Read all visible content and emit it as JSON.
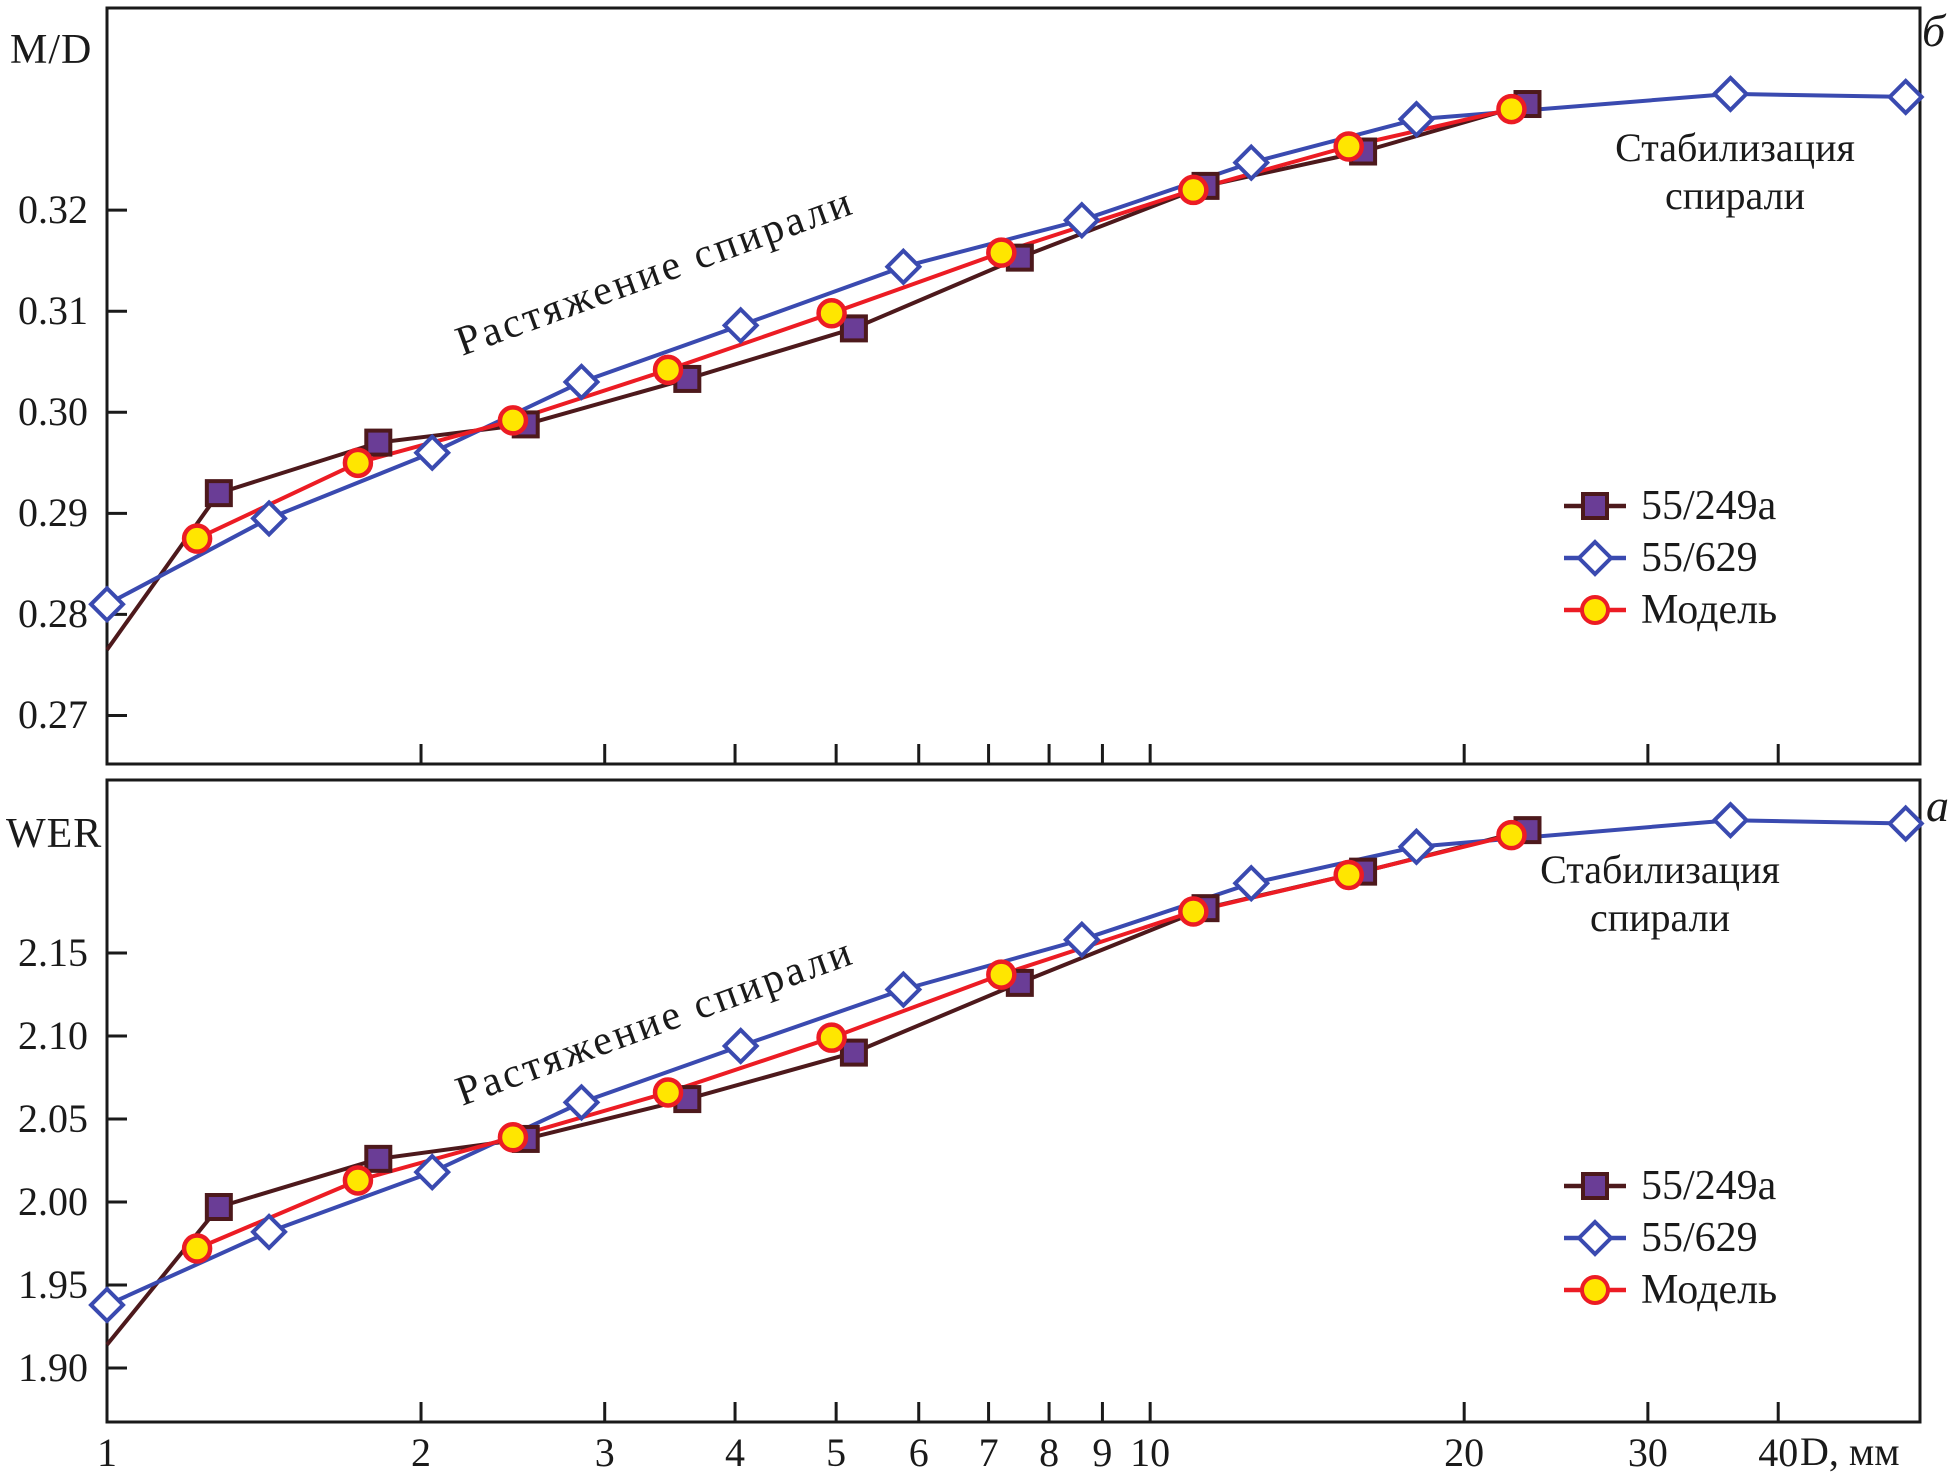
{
  "figure": {
    "background": "#ffffff",
    "frame_color": "#1a1a1a",
    "text_color": "#1a1a1a",
    "x_axis": {
      "title": "D, мм",
      "scale": "log",
      "range": [
        1,
        54.7
      ],
      "tick_values": [
        1,
        2,
        3,
        4,
        5,
        6,
        7,
        8,
        9,
        10,
        20,
        30,
        40
      ],
      "tick_labels": [
        "1",
        "2",
        "3",
        "4",
        "5",
        "6",
        "7",
        "8",
        "9",
        "10",
        "20",
        "30",
        "40"
      ]
    },
    "colors": {
      "line_55_249a": "#4d191c",
      "line_55_629": "#3a4ab0",
      "line_model": "#ec1c24",
      "square_fill": "#6a3d96",
      "diamond_fill": "#ffffff",
      "circle_fill": "#ffe600"
    },
    "legend": [
      {
        "label": "55/249a",
        "marker": "square"
      },
      {
        "label": "55/629",
        "marker": "diamond"
      },
      {
        "label": "Модель",
        "marker": "circle"
      }
    ]
  },
  "chart_data": [
    {
      "id": "top",
      "type": "line",
      "panel_label": "б",
      "ylabel": "M/D",
      "x_scale": "log",
      "xlim": [
        1,
        54.7
      ],
      "ylim": [
        0.2652,
        0.34
      ],
      "yticks": [
        {
          "v": 0.27,
          "label": "0.27"
        },
        {
          "v": 0.28,
          "label": "0.28"
        },
        {
          "v": 0.29,
          "label": "0.29"
        },
        {
          "v": 0.3,
          "label": "0.30"
        },
        {
          "v": 0.31,
          "label": "0.31"
        },
        {
          "v": 0.32,
          "label": "0.32"
        }
      ],
      "annotations": {
        "stretch": "Растяжение спирали",
        "stabilization_line1": "Стабилизация",
        "stabilization_line2": "спирали"
      },
      "series": [
        {
          "name": "55/249a",
          "marker": "square",
          "marker_from": 1,
          "x": [
            1.0,
            1.28,
            1.82,
            2.52,
            3.6,
            5.2,
            7.5,
            11.3,
            16,
            23
          ],
          "y": [
            0.2765,
            0.292,
            0.297,
            0.2988,
            0.3033,
            0.3083,
            0.3153,
            0.3224,
            0.3258,
            0.3305
          ]
        },
        {
          "name": "55/629",
          "marker": "diamond",
          "marker_from": 0,
          "x": [
            1.0,
            1.43,
            2.05,
            2.85,
            4.05,
            5.8,
            8.6,
            12.5,
            18,
            36,
            53
          ],
          "y": [
            0.281,
            0.2895,
            0.296,
            0.303,
            0.3086,
            0.3144,
            0.319,
            0.3247,
            0.329,
            0.3315,
            0.3312
          ]
        },
        {
          "name": "Модель",
          "marker": "circle",
          "marker_from": 0,
          "x": [
            1.22,
            1.74,
            2.45,
            3.45,
            4.95,
            7.2,
            11.0,
            15.5,
            22.2
          ],
          "y": [
            0.2875,
            0.295,
            0.2992,
            0.3042,
            0.3098,
            0.3158,
            0.322,
            0.3263,
            0.33
          ]
        }
      ]
    },
    {
      "id": "bottom",
      "type": "line",
      "panel_label": "а",
      "ylabel": "WER",
      "x_scale": "log",
      "xlim": [
        1,
        54.7
      ],
      "ylim": [
        1.8675,
        2.2542
      ],
      "yticks": [
        {
          "v": 1.9,
          "label": "1.90"
        },
        {
          "v": 1.95,
          "label": "1.95"
        },
        {
          "v": 2.0,
          "label": "2.00"
        },
        {
          "v": 2.05,
          "label": "2.05"
        },
        {
          "v": 2.1,
          "label": "2.10"
        },
        {
          "v": 2.15,
          "label": "2.15"
        }
      ],
      "annotations": {
        "stretch": "Растяжение спирали",
        "stabilization_line1": "Стабилизация",
        "stabilization_line2": "спирали"
      },
      "series": [
        {
          "name": "55/249a",
          "marker": "square",
          "marker_from": 1,
          "x": [
            1.0,
            1.28,
            1.82,
            2.52,
            3.6,
            5.2,
            7.5,
            11.3,
            16,
            23
          ],
          "y": [
            1.914,
            1.997,
            2.026,
            2.038,
            2.062,
            2.09,
            2.132,
            2.177,
            2.199,
            2.224
          ]
        },
        {
          "name": "55/629",
          "marker": "diamond",
          "marker_from": 0,
          "x": [
            1.0,
            1.43,
            2.05,
            2.85,
            4.05,
            5.8,
            8.6,
            12.5,
            18,
            36,
            53
          ],
          "y": [
            1.938,
            1.982,
            2.018,
            2.06,
            2.094,
            2.128,
            2.158,
            2.192,
            2.214,
            2.23,
            2.228
          ]
        },
        {
          "name": "Модель",
          "marker": "circle",
          "marker_from": 0,
          "x": [
            1.22,
            1.74,
            2.45,
            3.45,
            4.95,
            7.2,
            11.0,
            15.5,
            22.2
          ],
          "y": [
            1.972,
            2.013,
            2.039,
            2.066,
            2.099,
            2.137,
            2.175,
            2.197,
            2.221
          ]
        }
      ]
    }
  ]
}
